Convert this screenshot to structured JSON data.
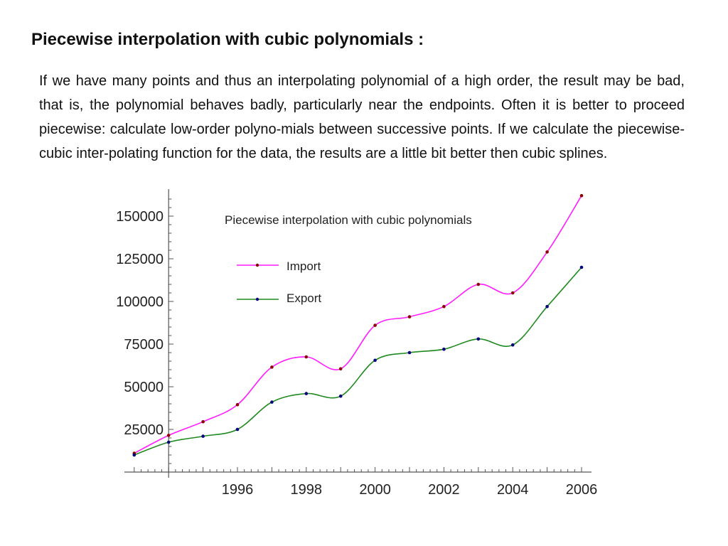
{
  "slide": {
    "title": "Piecewise interpolation with cubic polynomials :",
    "paragraph": "If we have many points and thus an interpolating polynomial of a high order, the result may be bad, that is, the polynomial behaves badly, particularly near the endpoints. Often it is better to proceed piecewise: calculate low-order polyno-mials between successive points. If we calculate the piecewise-cubic inter-polating function for the data, the results are a little bit better then cubic splines."
  },
  "chart_data": {
    "type": "line",
    "title": "Piecewise interpolation with cubic polynomials",
    "xlabel": "",
    "ylabel": "",
    "x": [
      1994,
      1995,
      1996,
      1997,
      1998,
      1999,
      2000,
      2001,
      2002,
      2003,
      2004,
      2005,
      2006
    ],
    "x_ticks": [
      1996,
      1998,
      2000,
      2002,
      2004,
      2006
    ],
    "y_ticks": [
      25000,
      50000,
      75000,
      100000,
      125000,
      150000
    ],
    "xlim": [
      1993.0,
      2006.3
    ],
    "ylim": [
      0,
      165000
    ],
    "grid": false,
    "legend": "top-left inside plot",
    "series": [
      {
        "name": "Import",
        "color": "#ff1cff",
        "marker_color": "#8b0000",
        "values": [
          21500,
          29500,
          39500,
          61500,
          67500,
          60500,
          86000,
          91000,
          97000,
          110000,
          105000,
          129000,
          162000
        ]
      },
      {
        "name": "Export",
        "color": "#1f8a1f",
        "marker_color": "#000080",
        "values": [
          17500,
          21000,
          25000,
          41000,
          46000,
          44500,
          65500,
          70000,
          72000,
          78000,
          74500,
          97000,
          120000
        ]
      }
    ],
    "start_points": {
      "Import": 11000,
      "Export": 10000
    }
  }
}
